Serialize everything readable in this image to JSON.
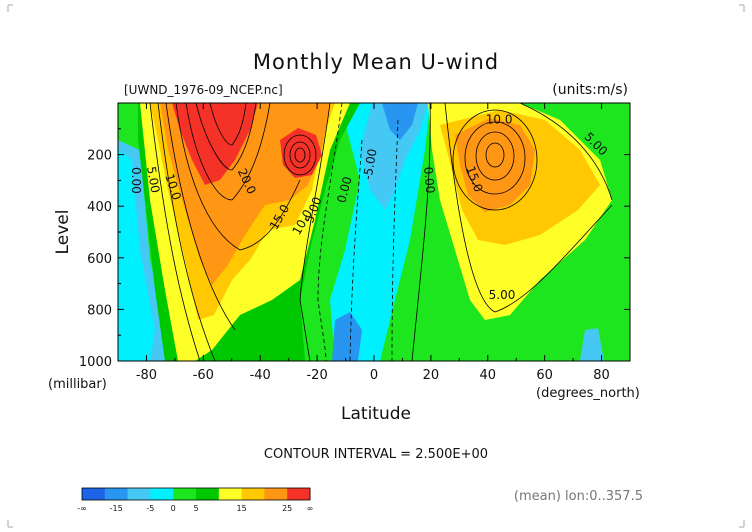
{
  "chart_data": {
    "type": "contour",
    "title": "Monthly Mean U-wind",
    "file_label": "[UWND_1976-09_NCEP.nc]",
    "units_label": "(units:m/s)",
    "xlabel": "Latitude",
    "x_units": "(degrees_north)",
    "ylabel": "Level",
    "y_units": "(millibar)",
    "xlim": [
      -90,
      90
    ],
    "ylim": [
      1000,
      0
    ],
    "x_ticks": [
      -80,
      -60,
      -40,
      -20,
      0,
      20,
      40,
      60,
      80
    ],
    "x_tick_labels": [
      "-80",
      "-60",
      "-40",
      "-20",
      "0",
      "20",
      "40",
      "60",
      "80"
    ],
    "y_ticks": [
      200,
      400,
      600,
      800,
      1000
    ],
    "y_tick_labels": [
      "200",
      "400",
      "600",
      "800",
      "1000"
    ],
    "contour_interval_text": "CONTOUR INTERVAL = 2.500E+00",
    "footer_text": "(mean) lon:0..357.5",
    "colorbar": {
      "labels": [
        "-∞",
        "-15",
        "-5",
        "0",
        "5",
        "15",
        "25",
        "∞"
      ],
      "colors": [
        "#1e64e6",
        "#2896f0",
        "#46c8f5",
        "#00f0ff",
        "#1ee61e",
        "#00c800",
        "#ffff28",
        "#ffc800",
        "#ff9614",
        "#f53228"
      ]
    },
    "contour_labels": [
      {
        "text": "0.00",
        "lat": -85,
        "lev": 300,
        "rot": 90
      },
      {
        "text": "5.00",
        "lat": -79,
        "lev": 300,
        "rot": 80
      },
      {
        "text": "10.0",
        "lat": -72,
        "lev": 330,
        "rot": 72
      },
      {
        "text": "20.0",
        "lat": -46,
        "lev": 310,
        "rot": 65
      },
      {
        "text": "15.0",
        "lat": -32,
        "lev": 450,
        "rot": -60
      },
      {
        "text": "10.0",
        "lat": -24,
        "lev": 470,
        "rot": -60
      },
      {
        "text": "5.00",
        "lat": -20,
        "lev": 420,
        "rot": -70
      },
      {
        "text": "0.00",
        "lat": -9,
        "lev": 340,
        "rot": -75
      },
      {
        "text": "-5.00",
        "lat": 0,
        "lev": 240,
        "rot": -80
      },
      {
        "text": "0.00",
        "lat": 18,
        "lev": 300,
        "rot": 85
      },
      {
        "text": "10.0",
        "lat": 44,
        "lev": 80,
        "rot": 0
      },
      {
        "text": "15.0",
        "lat": 34,
        "lev": 300,
        "rot": 70
      },
      {
        "text": "5.00",
        "lat": 77,
        "lev": 170,
        "rot": 45
      },
      {
        "text": "5.00",
        "lat": 45,
        "lev": 760,
        "rot": 0
      }
    ]
  }
}
